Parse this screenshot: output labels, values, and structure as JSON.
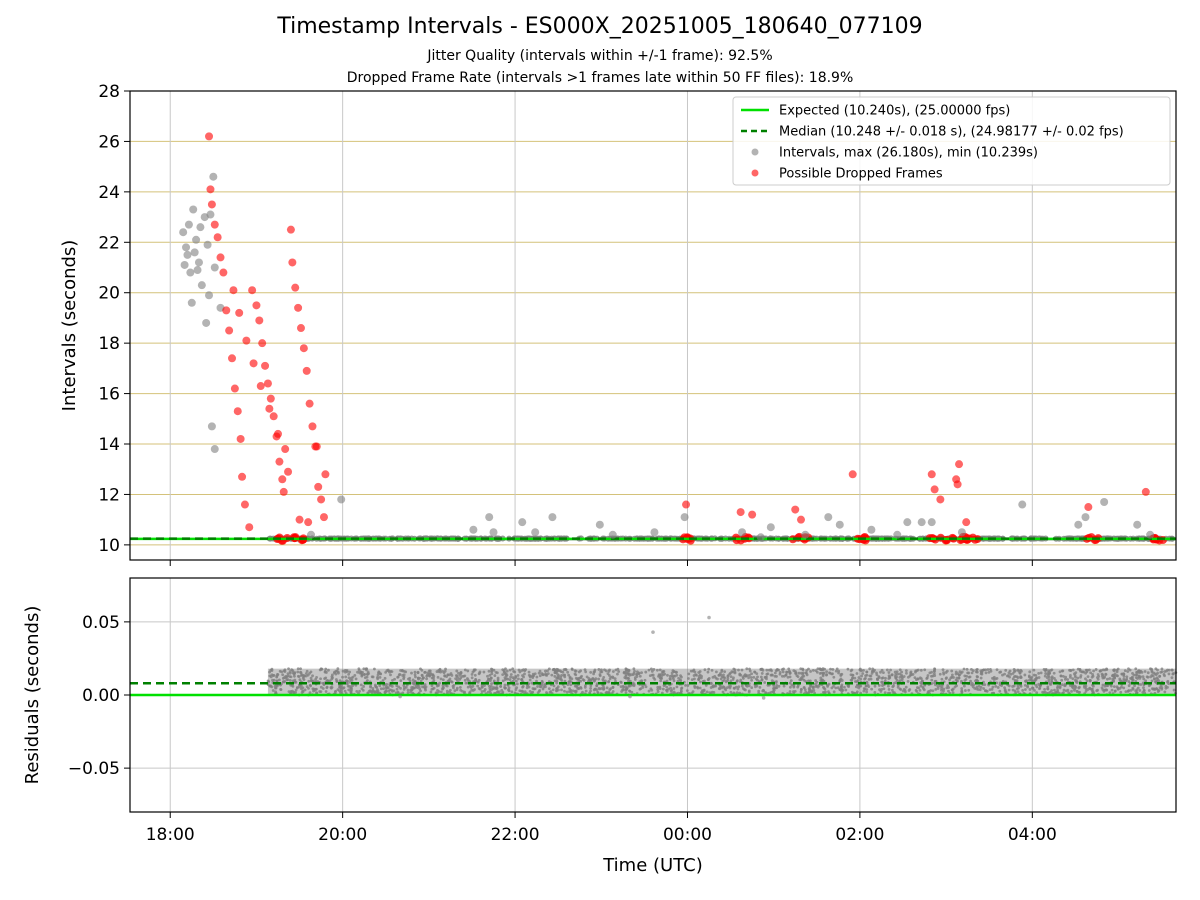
{
  "chart_data": [
    {
      "type": "scatter",
      "title": "Timestamp Intervals - ES000X_20251005_180640_077109",
      "subtitle_lines": [
        "Jitter Quality (intervals within +/-1 frame): 92.5%",
        "Dropped Frame Rate (intervals >1 frames late within 50 FF files): 18.9%"
      ],
      "xlabel": "",
      "ylabel": "Intervals (seconds)",
      "xlim": [
        "17:32",
        "05:40"
      ],
      "ylim": [
        9.4,
        28
      ],
      "yticks": [
        10,
        12,
        14,
        16,
        18,
        20,
        22,
        24,
        26,
        28
      ],
      "legend_position": "top-right",
      "legend": [
        "Expected (10.240s), (25.00000 fps)",
        "Median (10.248 +/- 0.018 s), (24.98177 +/- 0.02 fps)",
        "Intervals, max (26.180s), min (10.239s)",
        "Possible Dropped Frames"
      ],
      "reference_lines": [
        {
          "name": "Expected",
          "y": 10.24,
          "color": "#00e000",
          "style": "solid"
        },
        {
          "name": "Median",
          "y": 10.248,
          "color": "#008000",
          "style": "dashed"
        }
      ],
      "series": [
        {
          "name": "Intervals",
          "color": "#808080",
          "points": [
            [
              "18:09",
              22.4
            ],
            [
              "18:12",
              21.5
            ],
            [
              "18:14",
              20.8
            ],
            [
              "18:15",
              19.6
            ],
            [
              "18:10",
              21.1
            ],
            [
              "18:13",
              22.7
            ],
            [
              "18:16",
              23.3
            ],
            [
              "18:18",
              22.1
            ],
            [
              "18:20",
              21.2
            ],
            [
              "18:22",
              20.3
            ],
            [
              "18:25",
              18.8
            ],
            [
              "18:27",
              19.9
            ],
            [
              "18:28",
              23.1
            ],
            [
              "18:30",
              24.6
            ],
            [
              "18:31",
              21.0
            ],
            [
              "18:29",
              14.7
            ],
            [
              "18:31",
              13.8
            ],
            [
              "18:35",
              19.4
            ],
            [
              "18:11",
              21.8
            ],
            [
              "18:17",
              21.6
            ],
            [
              "18:21",
              22.6
            ],
            [
              "18:24",
              23.0
            ],
            [
              "18:26",
              21.9
            ],
            [
              "18:19",
              20.9
            ],
            [
              "19:38",
              10.4
            ],
            [
              "19:59",
              11.8
            ],
            [
              "21:31",
              10.6
            ],
            [
              "21:42",
              11.1
            ],
            [
              "21:45",
              10.5
            ],
            [
              "22:05",
              10.9
            ],
            [
              "22:14",
              10.5
            ],
            [
              "22:26",
              11.1
            ],
            [
              "22:59",
              10.8
            ],
            [
              "23:08",
              10.4
            ],
            [
              "23:37",
              10.5
            ],
            [
              "23:58",
              11.1
            ],
            [
              "00:38",
              10.5
            ],
            [
              "00:51",
              10.3
            ],
            [
              "00:58",
              10.7
            ],
            [
              "01:22",
              10.4
            ],
            [
              "01:38",
              11.1
            ],
            [
              "01:46",
              10.8
            ],
            [
              "02:08",
              10.6
            ],
            [
              "02:26",
              10.4
            ],
            [
              "02:33",
              10.9
            ],
            [
              "02:43",
              10.9
            ],
            [
              "02:50",
              10.9
            ],
            [
              "03:11",
              10.5
            ],
            [
              "03:53",
              11.6
            ],
            [
              "04:32",
              10.8
            ],
            [
              "04:37",
              11.1
            ],
            [
              "04:50",
              11.7
            ],
            [
              "05:13",
              10.8
            ],
            [
              "05:22",
              10.4
            ]
          ]
        },
        {
          "name": "Possible Dropped Frames",
          "color": "#ff0000",
          "points": [
            [
              "18:27",
              26.2
            ],
            [
              "18:28",
              24.1
            ],
            [
              "18:29",
              23.5
            ],
            [
              "18:31",
              22.7
            ],
            [
              "18:33",
              22.2
            ],
            [
              "18:35",
              21.4
            ],
            [
              "18:37",
              20.8
            ],
            [
              "18:39",
              19.3
            ],
            [
              "18:41",
              18.5
            ],
            [
              "18:43",
              17.4
            ],
            [
              "18:45",
              16.2
            ],
            [
              "18:47",
              15.3
            ],
            [
              "18:49",
              14.2
            ],
            [
              "18:50",
              12.7
            ],
            [
              "18:52",
              11.6
            ],
            [
              "18:55",
              10.7
            ],
            [
              "18:57",
              20.1
            ],
            [
              "19:00",
              19.5
            ],
            [
              "19:02",
              18.9
            ],
            [
              "19:04",
              18.0
            ],
            [
              "19:06",
              17.1
            ],
            [
              "19:08",
              16.4
            ],
            [
              "19:10",
              15.8
            ],
            [
              "19:12",
              15.1
            ],
            [
              "19:14",
              14.3
            ],
            [
              "19:16",
              13.3
            ],
            [
              "19:18",
              12.6
            ],
            [
              "19:20",
              13.8
            ],
            [
              "19:22",
              12.9
            ],
            [
              "19:24",
              22.5
            ],
            [
              "19:25",
              21.2
            ],
            [
              "19:27",
              20.2
            ],
            [
              "19:29",
              19.4
            ],
            [
              "19:31",
              18.6
            ],
            [
              "19:33",
              17.8
            ],
            [
              "19:35",
              16.9
            ],
            [
              "19:37",
              15.6
            ],
            [
              "19:39",
              14.7
            ],
            [
              "19:41",
              13.9
            ],
            [
              "19:43",
              12.3
            ],
            [
              "19:45",
              11.8
            ],
            [
              "19:47",
              11.1
            ],
            [
              "18:44",
              20.1
            ],
            [
              "18:48",
              19.2
            ],
            [
              "18:53",
              18.1
            ],
            [
              "18:58",
              17.2
            ],
            [
              "19:03",
              16.3
            ],
            [
              "19:09",
              15.4
            ],
            [
              "19:15",
              14.4
            ],
            [
              "19:19",
              12.1
            ],
            [
              "19:30",
              11.0
            ],
            [
              "19:36",
              10.9
            ],
            [
              "19:42",
              13.9
            ],
            [
              "19:48",
              12.8
            ],
            [
              "23:59",
              11.6
            ],
            [
              "00:37",
              11.3
            ],
            [
              "00:45",
              11.2
            ],
            [
              "01:15",
              11.4
            ],
            [
              "01:19",
              11.0
            ],
            [
              "01:55",
              12.8
            ],
            [
              "02:50",
              12.8
            ],
            [
              "02:52",
              12.2
            ],
            [
              "02:56",
              11.8
            ],
            [
              "03:07",
              12.6
            ],
            [
              "03:08",
              12.4
            ],
            [
              "03:09",
              13.2
            ],
            [
              "03:14",
              10.9
            ],
            [
              "04:39",
              11.5
            ],
            [
              "05:19",
              12.1
            ]
          ]
        }
      ],
      "dense_bands": [
        {
          "series": "Intervals",
          "from": "19:08",
          "to": "05:40",
          "y_min": 10.24,
          "y_max": 10.256
        },
        {
          "series": "Possible Dropped Frames",
          "from": "19:12",
          "to": "19:33",
          "y_min": 10.24,
          "y_max": 10.3
        },
        {
          "series": "Possible Dropped Frames",
          "from": "23:56",
          "to": "00:06",
          "y_min": 10.24,
          "y_max": 10.3
        },
        {
          "series": "Possible Dropped Frames",
          "from": "00:33",
          "to": "00:43",
          "y_min": 10.24,
          "y_max": 10.3
        },
        {
          "series": "Possible Dropped Frames",
          "from": "01:12",
          "to": "01:24",
          "y_min": 10.24,
          "y_max": 10.3
        },
        {
          "series": "Possible Dropped Frames",
          "from": "01:54",
          "to": "02:06",
          "y_min": 10.24,
          "y_max": 10.3
        },
        {
          "series": "Possible Dropped Frames",
          "from": "02:48",
          "to": "03:22",
          "y_min": 10.24,
          "y_max": 10.3
        },
        {
          "series": "Possible Dropped Frames",
          "from": "04:37",
          "to": "04:46",
          "y_min": 10.24,
          "y_max": 10.3
        },
        {
          "series": "Possible Dropped Frames",
          "from": "05:16",
          "to": "05:31",
          "y_min": 10.24,
          "y_max": 10.3
        }
      ]
    },
    {
      "type": "scatter",
      "xlabel": "Time (UTC)",
      "ylabel": "Residuals (seconds)",
      "xlim": [
        "17:32",
        "05:40"
      ],
      "ylim": [
        -0.08,
        0.08
      ],
      "yticks": [
        -0.05,
        0.0,
        0.05
      ],
      "ytick_labels": [
        "−0.05",
        "0.00",
        "0.05"
      ],
      "xticks": [
        "18:00",
        "20:00",
        "22:00",
        "00:00",
        "02:00",
        "04:00"
      ],
      "reference_lines": [
        {
          "name": "Expected",
          "y": 0.0,
          "color": "#00e000",
          "style": "solid"
        },
        {
          "name": "Median",
          "y": 0.008,
          "color": "#008000",
          "style": "dashed"
        }
      ],
      "series": [
        {
          "name": "Residuals",
          "color": "#808080",
          "points": [
            [
              "23:36",
              0.043
            ],
            [
              "00:15",
              0.053
            ],
            [
              "00:53",
              -0.002
            ],
            [
              "20:40",
              -0.001
            ],
            [
              "23:20",
              -0.001
            ]
          ]
        }
      ],
      "dense_bands": [
        {
          "series": "Residuals",
          "from": "19:08",
          "to": "05:40",
          "y_min": 0.0,
          "y_max": 0.018
        }
      ]
    }
  ]
}
